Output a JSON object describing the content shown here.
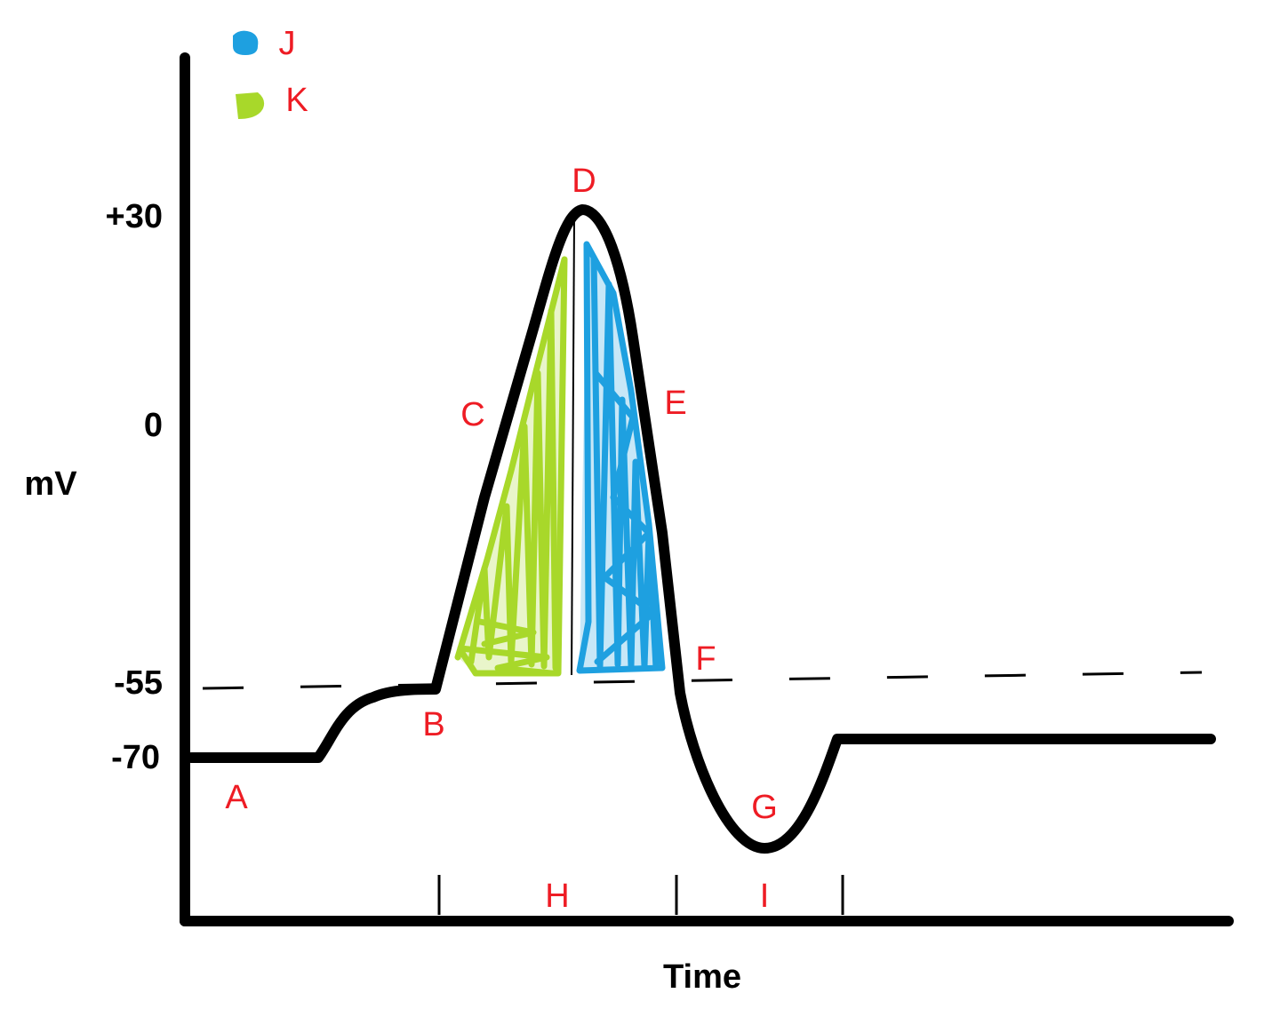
{
  "axes": {
    "y_label": "mV",
    "x_label": "Time",
    "y_ticks": [
      "+30",
      "0",
      "-55",
      "-70"
    ]
  },
  "points": {
    "A": "A",
    "B": "B",
    "C": "C",
    "D": "D",
    "E": "E",
    "F": "F",
    "G": "G",
    "H": "H",
    "I": "I"
  },
  "legend": [
    {
      "label": "J",
      "color": "#1ea0e0"
    },
    {
      "label": "K",
      "color": "#a8d82a"
    }
  ],
  "colors": {
    "curve": "#000000",
    "letters": "#ee1c24",
    "blue_fill": "#1ea0e0",
    "green_fill": "#a8d82a"
  }
}
